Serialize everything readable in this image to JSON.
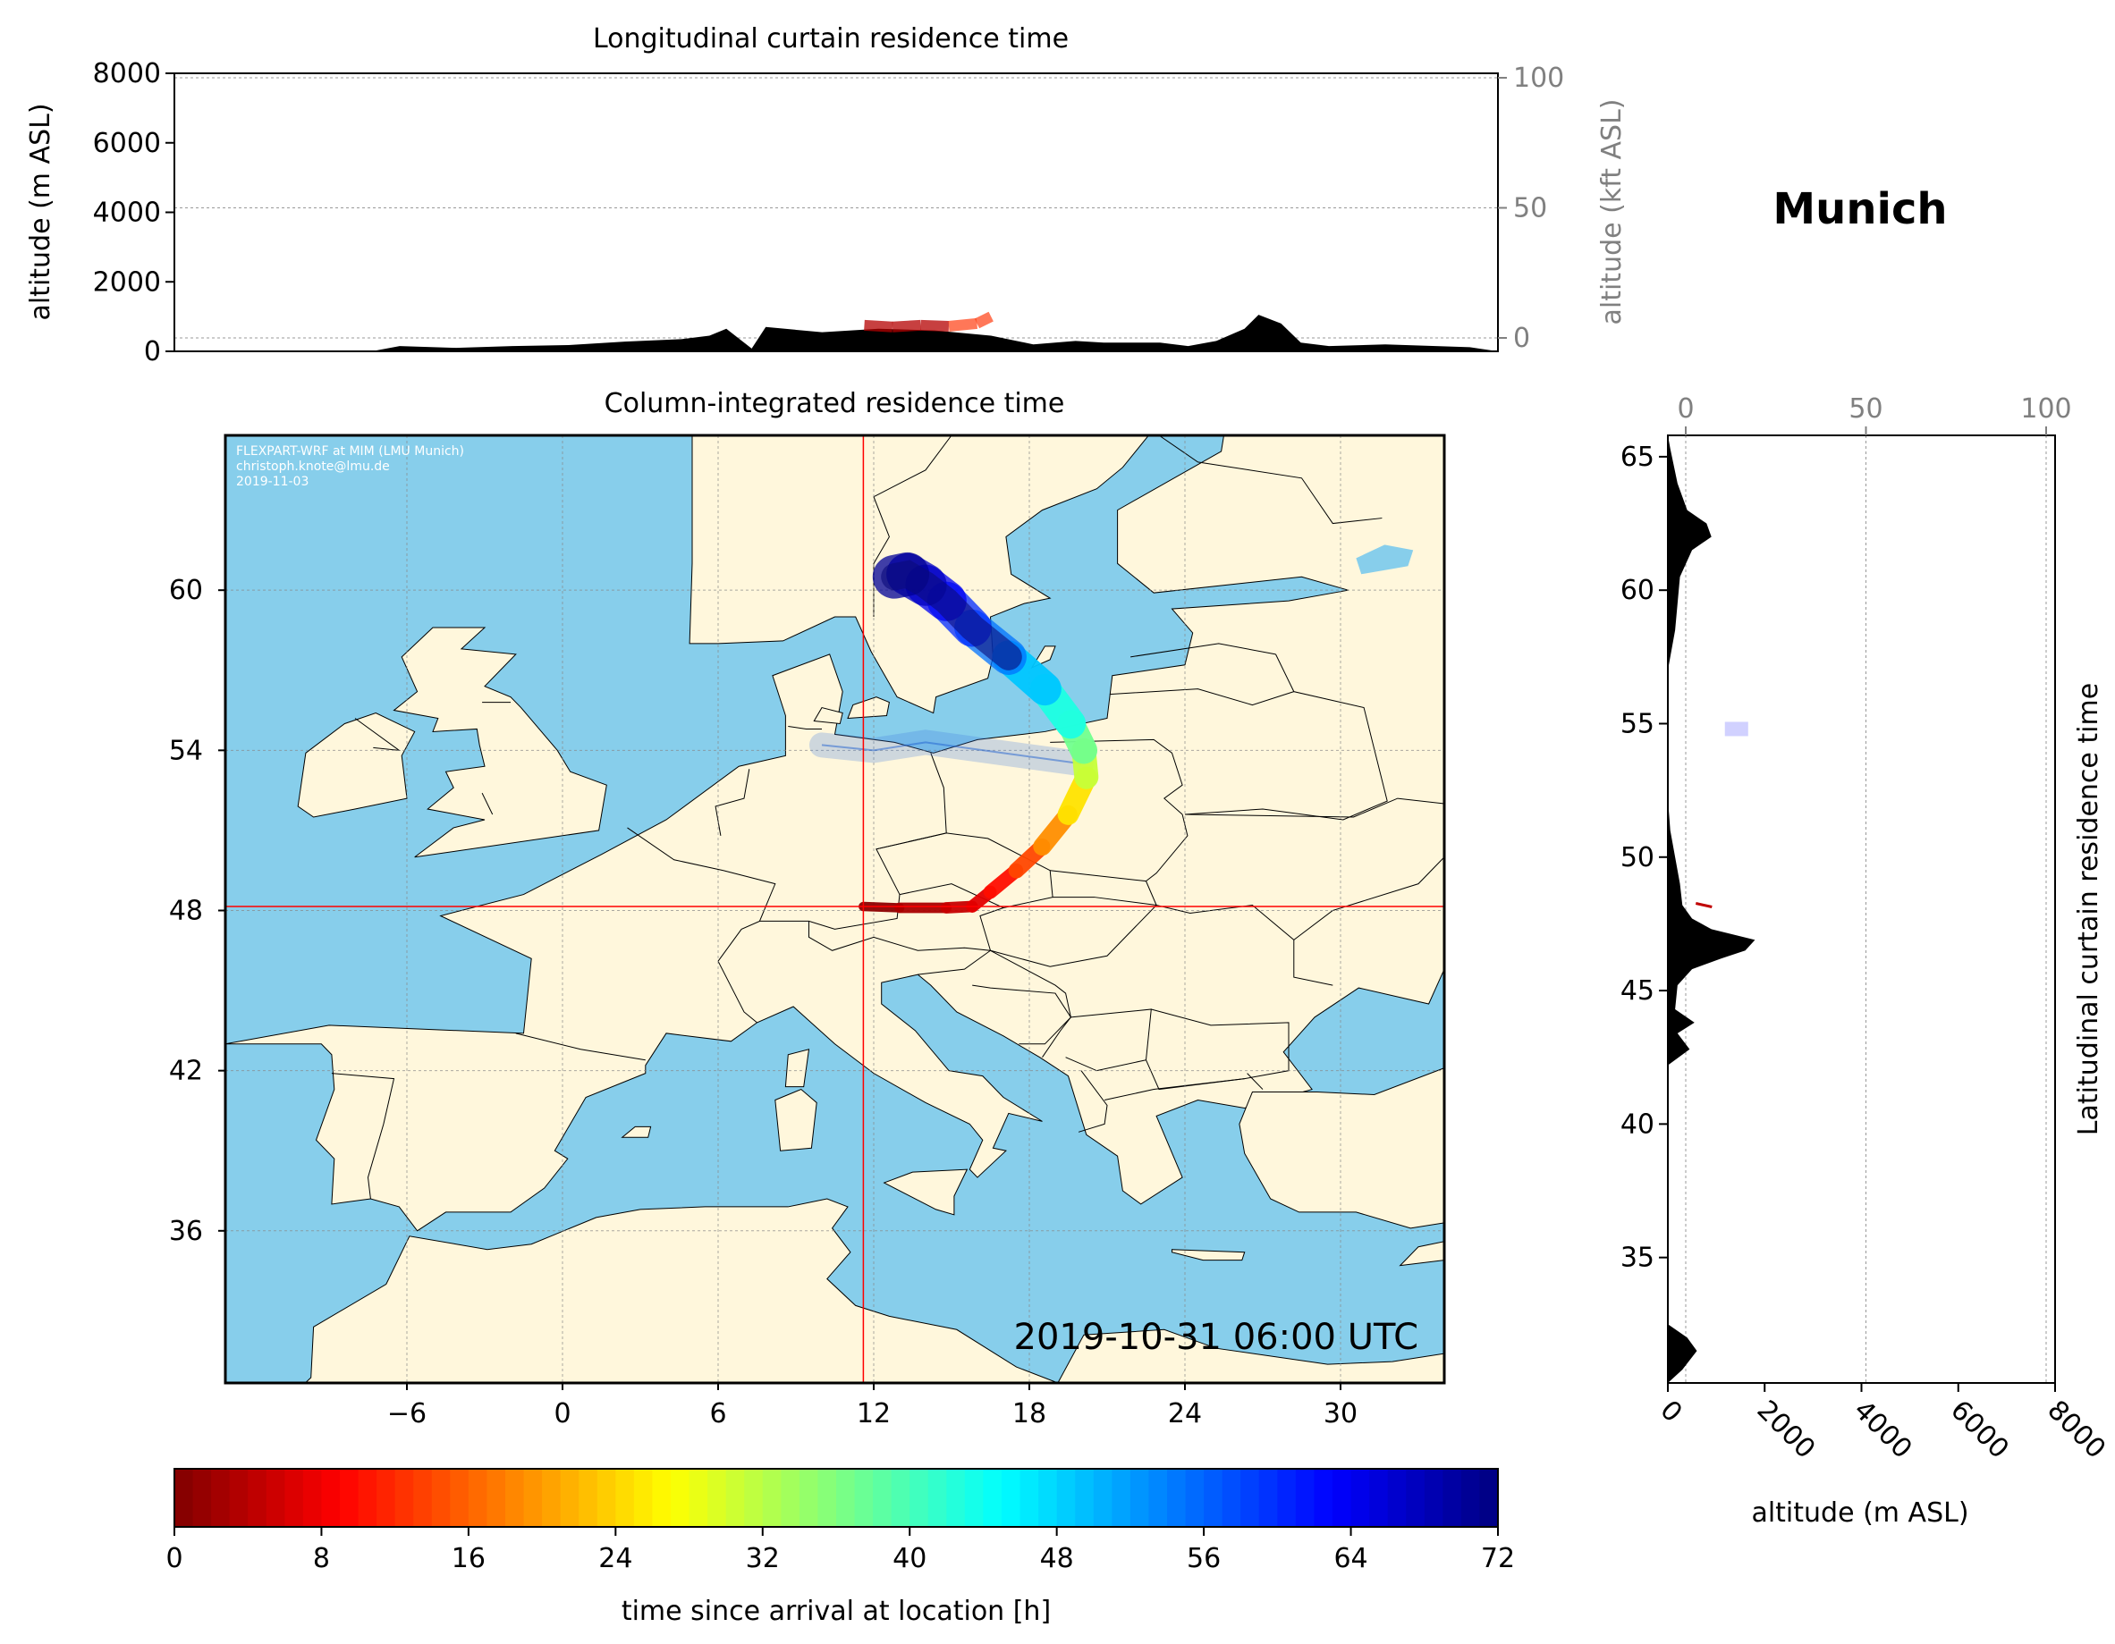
{
  "title": "Munich",
  "colors": {
    "ocean": "#87ceeb",
    "land": "#fff7dc",
    "terrain": "#000000",
    "marker": "#ff0000",
    "secondary_axis": "#808080",
    "stamp": "#ffffff"
  },
  "stamp": {
    "line1": "FLEXPART-WRF at MIM (LMU Munich)",
    "line2": "christoph.knote@lmu.de",
    "line3": "2019-11-03"
  },
  "timestamp": "2019-10-31 06:00 UTC",
  "release_location": {
    "lon": 11.6,
    "lat": 48.15
  },
  "chart_data": [
    {
      "id": "longitudinal",
      "type": "area",
      "title": "Longitudinal curtain residence time",
      "ylabel": "altitude (m ASL)",
      "ylabel_right": "altitude (kft ASL)",
      "xlim": [
        -13,
        34
      ],
      "ylim": [
        0,
        8000
      ],
      "ylim_right": [
        0,
        100
      ],
      "yticks": [
        0,
        2000,
        4000,
        6000,
        8000
      ],
      "yticks_right": [
        0,
        50,
        100
      ],
      "grid": true,
      "terrain": {
        "x": [
          -13,
          -6,
          -5,
          -3,
          -1,
          1,
          3,
          5,
          6,
          6.6,
          7.5,
          8,
          10,
          12,
          14,
          16,
          17.5,
          19,
          20,
          22,
          23,
          24,
          25,
          25.5,
          26.3,
          27,
          28,
          30,
          33,
          34
        ],
        "y": [
          0,
          0,
          150,
          100,
          150,
          180,
          280,
          350,
          450,
          650,
          80,
          700,
          550,
          650,
          600,
          450,
          200,
          300,
          250,
          250,
          150,
          300,
          650,
          1050,
          800,
          250,
          150,
          200,
          120,
          0
        ]
      },
      "plume": {
        "x": [
          11.5,
          12.5,
          13.5,
          14.5,
          15.5,
          16.0
        ],
        "y": [
          750,
          700,
          750,
          720,
          800,
          1000
        ]
      }
    },
    {
      "id": "column",
      "type": "heatmap",
      "title": "Column-integrated residence time",
      "xlim": [
        -13,
        34
      ],
      "ylim": [
        30.3,
        65.8
      ],
      "xticks": [
        -6,
        0,
        6,
        12,
        18,
        24,
        30
      ],
      "yticks": [
        36,
        42,
        48,
        54,
        60
      ],
      "grid": true,
      "trajectory": {
        "lon": [
          11.6,
          13.0,
          14.8,
          15.8,
          16.5,
          17.5,
          18.5,
          19.5,
          20.2,
          20.1,
          19.6,
          18.6,
          17.2,
          15.8,
          14.8,
          14.0,
          13.3,
          12.8
        ],
        "lat": [
          48.15,
          48.1,
          48.1,
          48.15,
          48.7,
          49.5,
          50.4,
          51.6,
          53.0,
          54.0,
          55.0,
          56.3,
          57.5,
          58.6,
          59.6,
          60.2,
          60.6,
          60.5
        ],
        "hours": [
          0,
          2,
          4,
          6,
          8,
          12,
          16,
          22,
          28,
          34,
          40,
          46,
          52,
          58,
          62,
          66,
          69,
          72
        ]
      },
      "secondary_branch": {
        "lon": [
          20.0,
          17.0,
          14.0,
          12.0,
          10.0
        ],
        "lat": [
          53.5,
          53.9,
          54.3,
          54.0,
          54.2
        ]
      }
    },
    {
      "id": "latitudinal",
      "type": "area",
      "title": "Latitudinal curtain residence time",
      "xlabel": "altitude (m ASL)",
      "xlim": [
        0,
        8000
      ],
      "xlim_top": [
        0,
        100
      ],
      "xticks": [
        0,
        2000,
        4000,
        6000,
        8000
      ],
      "xticks_top": [
        0,
        50,
        100
      ],
      "ylim": [
        30.3,
        65.8
      ],
      "yticks": [
        35,
        40,
        45,
        50,
        55,
        60,
        65
      ],
      "grid": true,
      "terrain": {
        "lat": [
          30.3,
          30.8,
          31.5,
          32.0,
          32.5,
          34,
          37,
          40,
          42.2,
          42.8,
          43.4,
          43.8,
          44.3,
          45.2,
          45.8,
          46.2,
          46.5,
          46.9,
          47.3,
          47.7,
          48.2,
          49,
          50,
          51,
          52.2,
          53,
          57,
          58.5,
          59.5,
          60.5,
          61.5,
          62,
          62.5,
          63,
          64,
          65.3,
          65.8
        ],
        "alt": [
          0,
          300,
          600,
          400,
          0,
          0,
          0,
          0,
          0,
          450,
          200,
          550,
          150,
          200,
          500,
          1100,
          1600,
          1800,
          900,
          500,
          300,
          250,
          150,
          50,
          0,
          0,
          0,
          150,
          200,
          250,
          500,
          900,
          800,
          400,
          200,
          50,
          0
        ]
      },
      "blue_patch": {
        "lat": 54.8,
        "alt": 1400
      },
      "red_mark": {
        "lat": 48.2,
        "alt": 800
      }
    },
    {
      "id": "colorbar",
      "type": "colorbar",
      "xlabel": "time since arrival at location [h]",
      "range": [
        0,
        72
      ],
      "ticks": [
        0,
        8,
        16,
        24,
        32,
        40,
        48,
        56,
        64,
        72
      ]
    }
  ]
}
